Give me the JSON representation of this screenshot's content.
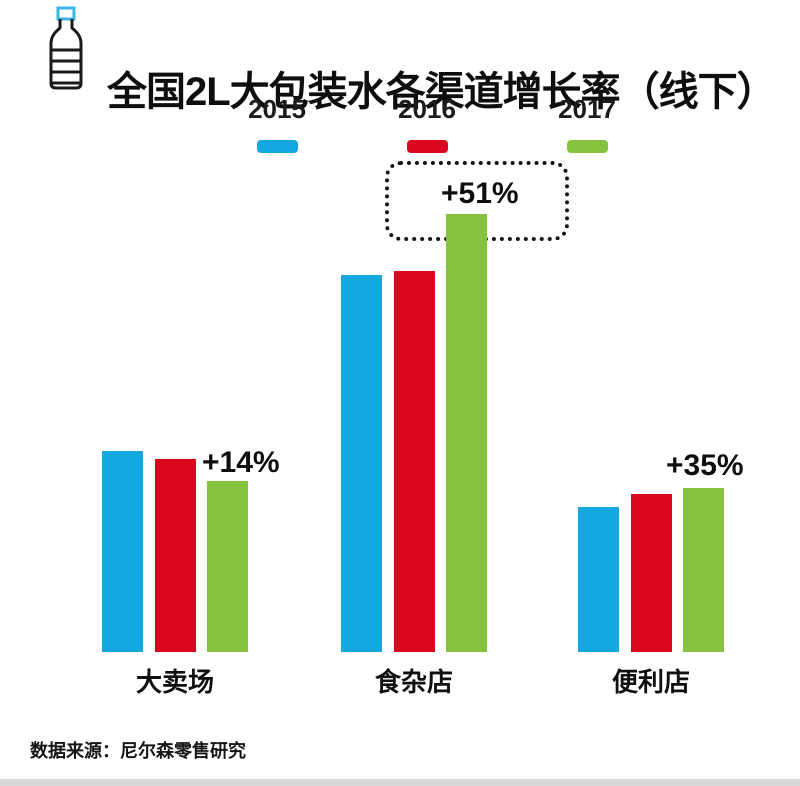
{
  "page": {
    "title": "全国2L大包装水各渠道增长率（线下）",
    "source_note": "数据来源：尼尔森零售研究"
  },
  "colors": {
    "series_2015_blue": "#15a8e0",
    "series_2016_red": "#d9081f",
    "series_2017_green": "#85c33e",
    "bottle_cap": "#3ab7e9",
    "text": "#111111",
    "background": "#ffffff",
    "bottom_strip": "#d7d7d7"
  },
  "legend": {
    "items": [
      {
        "label": "2015",
        "color": "#15a8e0"
      },
      {
        "label": "2016",
        "color": "#d9081f"
      },
      {
        "label": "2017",
        "color": "#85c33e"
      }
    ]
  },
  "chart_data": {
    "type": "bar",
    "title": "全国2L大包装水各渠道增长率（线下）",
    "categories": [
      "大卖场",
      "食杂店",
      "便利店"
    ],
    "series": [
      {
        "name": "2015",
        "color": "#15a8e0",
        "values": [
          46,
          86,
          33
        ]
      },
      {
        "name": "2016",
        "color": "#d9081f",
        "values": [
          44,
          87,
          36
        ]
      },
      {
        "name": "2017",
        "color": "#85c33e",
        "values": [
          39,
          100,
          37.5
        ]
      }
    ],
    "value_units": "relative bar height (no y-axis shown; max bar = 100)",
    "annotations": [
      {
        "text": "+14%",
        "category": "大卖场",
        "highlighted": false
      },
      {
        "text": "+51%",
        "category": "食杂店",
        "highlighted": true
      },
      {
        "text": "+35%",
        "category": "便利店",
        "highlighted": false
      }
    ],
    "legend_position": "top",
    "grid": false,
    "axes_visible": false,
    "source": "数据来源：尼尔森零售研究"
  }
}
